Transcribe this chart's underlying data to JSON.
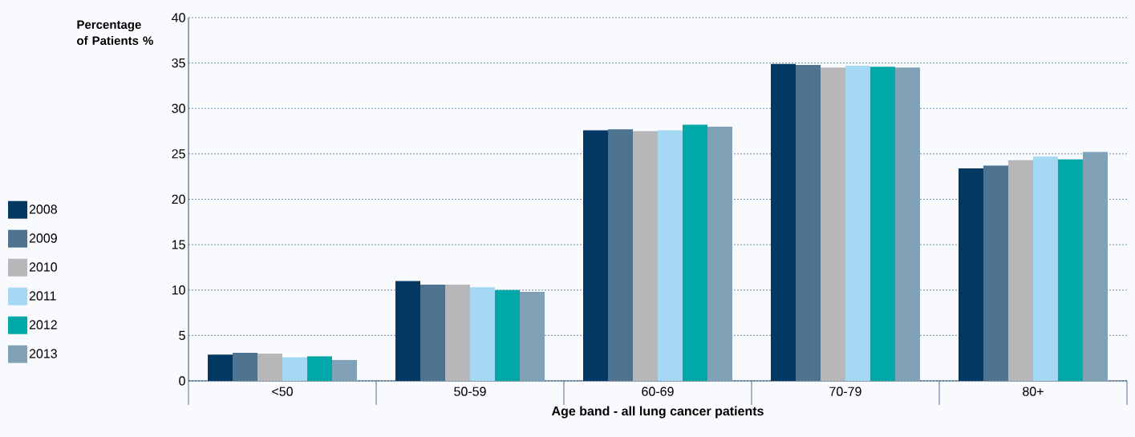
{
  "chart_data": {
    "type": "bar",
    "xlabel": "Age band - all lung cancer patients",
    "ylabel": "Percentage of Patients %",
    "categories": [
      "<50",
      "50-59",
      "60-69",
      "70-79",
      "80+"
    ],
    "series": [
      {
        "name": "2008",
        "color": "#033862",
        "values": [
          2.9,
          11.0,
          27.6,
          34.9,
          23.4
        ]
      },
      {
        "name": "2009",
        "color": "#4d7390",
        "values": [
          3.1,
          10.6,
          27.7,
          34.8,
          23.7
        ]
      },
      {
        "name": "2010",
        "color": "#b7b7b9",
        "values": [
          3.0,
          10.6,
          27.5,
          34.5,
          24.3
        ]
      },
      {
        "name": "2011",
        "color": "#a5d8f3",
        "values": [
          2.6,
          10.3,
          27.6,
          34.7,
          24.7
        ]
      },
      {
        "name": "2012",
        "color": "#00a9a8",
        "values": [
          2.7,
          10.0,
          28.2,
          34.6,
          24.4
        ]
      },
      {
        "name": "2013",
        "color": "#81a1b6",
        "values": [
          2.3,
          9.8,
          28.0,
          34.5,
          25.2
        ]
      }
    ],
    "ylim": [
      0,
      40
    ],
    "yticks": [
      0,
      5,
      10,
      15,
      20,
      25,
      30,
      35,
      40
    ],
    "grid": "y",
    "legend": "left"
  }
}
